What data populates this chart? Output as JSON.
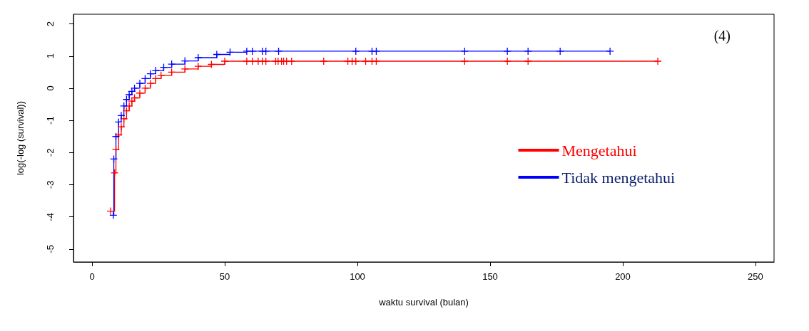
{
  "chart_data": {
    "type": "step",
    "xlabel": "waktu survival (bulan)",
    "ylabel": "log(-log (survival))",
    "annotations": [
      "(4)"
    ],
    "xlim": [
      -7,
      257
    ],
    "xticks": [
      0,
      50,
      100,
      150,
      200,
      250
    ],
    "ylim": [
      -5.4,
      2.3
    ],
    "yticks": [
      -5,
      -4,
      -3,
      -2,
      -1,
      0,
      1,
      2
    ],
    "grid": false,
    "legend": "right",
    "marker": "cross",
    "line_style": "solid",
    "series": [
      {
        "name": "Mengetahui",
        "color": "#ff0000",
        "x": [
          7,
          8.5,
          9,
          10,
          11,
          12,
          13,
          14,
          15,
          16,
          18,
          20,
          22,
          24,
          26,
          30,
          35,
          40,
          45,
          50,
          58.3,
          60.4,
          62.6,
          64.2,
          65.5,
          69.2,
          70.1,
          71.4,
          72.2,
          73.3,
          75.2,
          87.3,
          96.4,
          98,
          99.4,
          103.1,
          105.5,
          107.1,
          140.4,
          156.5,
          164.3,
          213.2
        ],
        "values": [
          -3.82,
          -2.63,
          -1.9,
          -1.45,
          -1.2,
          -0.95,
          -0.7,
          -0.55,
          -0.4,
          -0.3,
          -0.15,
          0,
          0.15,
          0.3,
          0.4,
          0.5,
          0.6,
          0.68,
          0.74,
          0.84,
          0.84,
          0.84,
          0.84,
          0.84,
          0.84,
          0.84,
          0.84,
          0.84,
          0.84,
          0.84,
          0.84,
          0.84,
          0.84,
          0.84,
          0.84,
          0.84,
          0.84,
          0.84,
          0.84,
          0.84,
          0.84,
          0.84
        ]
      },
      {
        "name": "Tidak mengetahui",
        "color": "#0000ff",
        "x": [
          8,
          8.2,
          9,
          10,
          11,
          12,
          13,
          14,
          15,
          16,
          18,
          20,
          22,
          24,
          27,
          30,
          35,
          40,
          47,
          52,
          58.3,
          60.4,
          64.2,
          65.5,
          70.3,
          99.4,
          105.5,
          107.1,
          140.4,
          156.5,
          164.3,
          176.4,
          195.2
        ],
        "values": [
          -3.95,
          -2.2,
          -1.5,
          -1.05,
          -0.85,
          -0.55,
          -0.35,
          -0.2,
          -0.1,
          0,
          0.15,
          0.3,
          0.45,
          0.55,
          0.65,
          0.75,
          0.85,
          0.95,
          1.05,
          1.12,
          1.15,
          1.15,
          1.15,
          1.15,
          1.15,
          1.15,
          1.15,
          1.15,
          1.15,
          1.15,
          1.15,
          1.15,
          1.15
        ]
      }
    ]
  }
}
